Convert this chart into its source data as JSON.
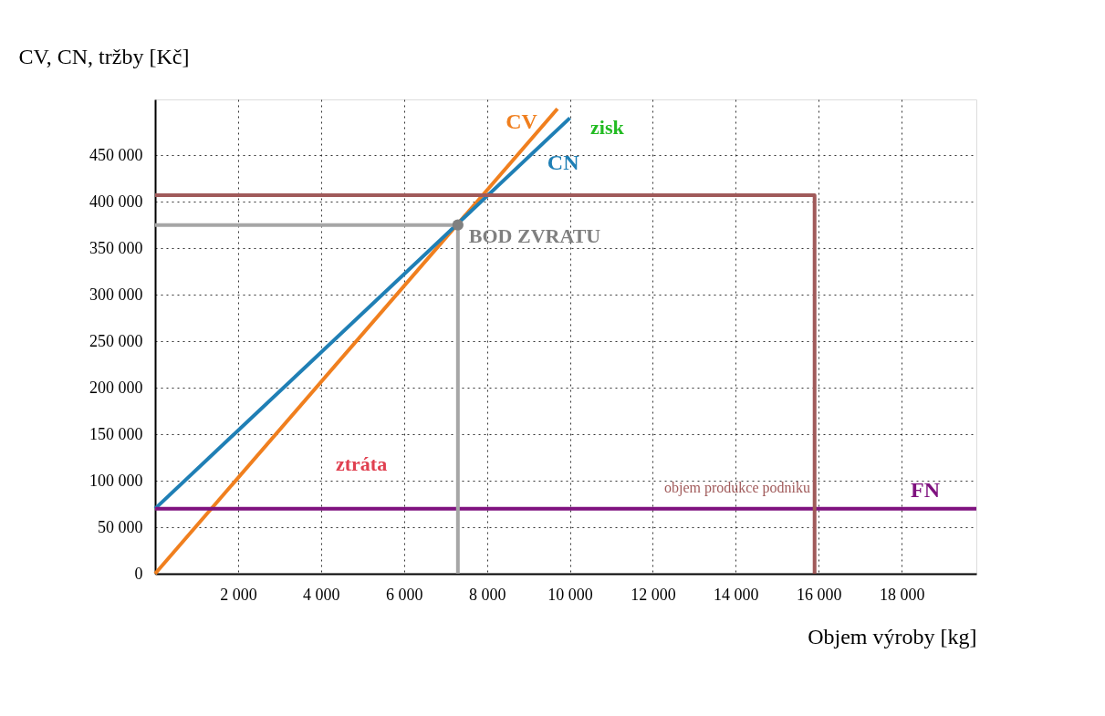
{
  "chart_data": {
    "type": "line",
    "xlabel": "Objem výroby [kg]",
    "ylabel": "CV, CN, tržby [Kč]",
    "xlim": [
      0,
      19800
    ],
    "ylim": [
      0,
      510000
    ],
    "xticks": [
      {
        "value": 2000,
        "label": "2 000"
      },
      {
        "value": 4000,
        "label": "4 000"
      },
      {
        "value": 6000,
        "label": "6 000"
      },
      {
        "value": 8000,
        "label": "8 000"
      },
      {
        "value": 10000,
        "label": "10 000"
      },
      {
        "value": 12000,
        "label": "12 000"
      },
      {
        "value": 14000,
        "label": "14 000"
      },
      {
        "value": 16000,
        "label": "16 000"
      },
      {
        "value": 18000,
        "label": "18 000"
      }
    ],
    "yticks": [
      0,
      {
        "value": 50000,
        "label": "50 000"
      },
      {
        "value": 100000,
        "label": "100 000"
      },
      {
        "value": 150000,
        "label": "150 000"
      },
      {
        "value": 200000,
        "label": "200 000"
      },
      {
        "value": 250000,
        "label": "250 000"
      },
      {
        "value": 300000,
        "label": "300 000"
      },
      {
        "value": 350000,
        "label": "350 000"
      },
      {
        "value": 400000,
        "label": "400 000"
      },
      {
        "value": 450000,
        "label": "450 000"
      }
    ],
    "grid": true,
    "line_style": "solid",
    "marker": "none",
    "series": [
      {
        "name": "CV",
        "color": "#f07f1e",
        "x": [
          0,
          9700
        ],
        "values": [
          0,
          500000
        ]
      },
      {
        "name": "CN",
        "color": "#1f7fb5",
        "x": [
          0,
          10000
        ],
        "values": [
          70000,
          490000
        ]
      },
      {
        "name": "FN",
        "color": "#7f127f",
        "x": [
          0,
          19800
        ],
        "values": [
          70000,
          70000
        ]
      },
      {
        "color": "#a05a5a",
        "x": [
          0,
          15900,
          15900
        ],
        "values": [
          407000,
          407000,
          0
        ]
      },
      {
        "color": "#a6a6a6",
        "x": [
          0,
          7300,
          7300
        ],
        "values": [
          375000,
          375000,
          0
        ]
      },
      {
        "type": "scatter",
        "marker": "circle",
        "color": "#808080",
        "x": [
          7300
        ],
        "values": [
          375000
        ]
      }
    ],
    "annotations": [
      "zisk",
      "ztráta",
      {
        "text": "BOD ZVRATU",
        "x": 7300,
        "y": 375000
      },
      "objem produkce podniku"
    ]
  }
}
